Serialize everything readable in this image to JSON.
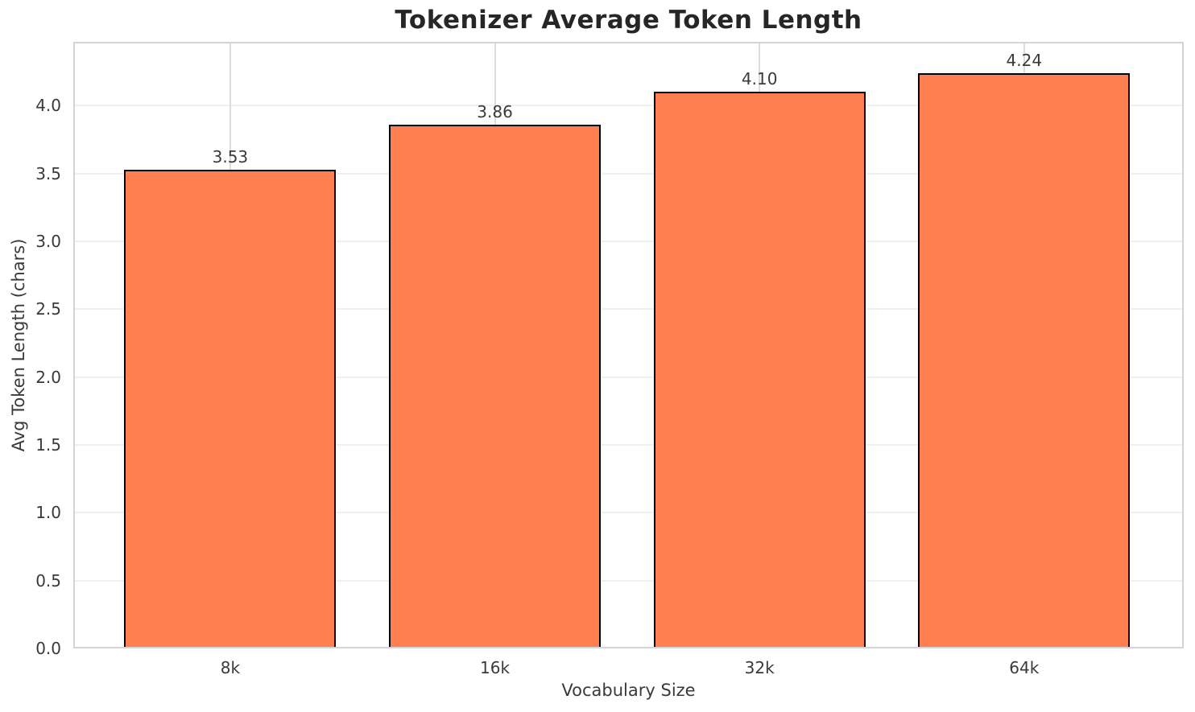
{
  "chart_data": {
    "type": "bar",
    "title": "Tokenizer Average Token Length",
    "xlabel": "Vocabulary Size",
    "ylabel": "Avg Token Length (chars)",
    "categories": [
      "8k",
      "16k",
      "32k",
      "64k"
    ],
    "values": [
      3.53,
      3.86,
      4.1,
      4.24
    ],
    "value_labels": [
      "3.53",
      "3.86",
      "4.10",
      "4.24"
    ],
    "yticks": [
      0.0,
      0.5,
      1.0,
      1.5,
      2.0,
      2.5,
      3.0,
      3.5,
      4.0
    ],
    "ytick_labels": [
      "0.0",
      "0.5",
      "1.0",
      "1.5",
      "2.0",
      "2.5",
      "3.0",
      "3.5",
      "4.0"
    ],
    "ylim": [
      0,
      4.47
    ],
    "xlim": [
      -0.593,
      3.603
    ],
    "bar_width": 0.8,
    "grid": true,
    "legend": false,
    "bar_color": "#FF7F50",
    "bar_edge_color": "#000000",
    "title_color": "#262626",
    "text_color": "#3a3a3a",
    "spine_color": "#d4d4d4",
    "hgrid_color": "#f0f0f0",
    "vgrid_color": "#dcdcdc",
    "background_color": "#ffffff"
  }
}
